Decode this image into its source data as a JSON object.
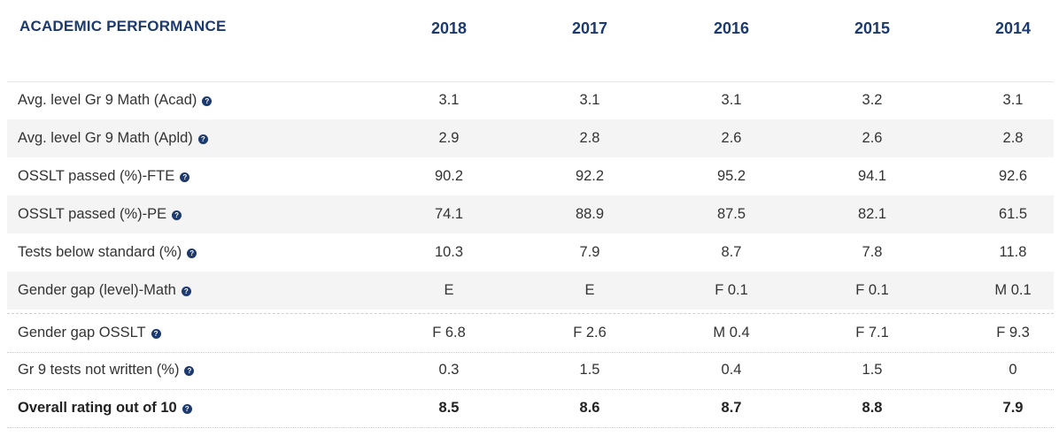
{
  "header": {
    "title": "ACADEMIC PERFORMANCE",
    "years": [
      "2018",
      "2017",
      "2016",
      "2015",
      "2014"
    ]
  },
  "rows": [
    {
      "label": "Avg. level Gr 9 Math (Acad)",
      "values": [
        "3.1",
        "3.1",
        "3.1",
        "3.2",
        "3.1"
      ]
    },
    {
      "label": "Avg. level Gr 9 Math (Apld)",
      "values": [
        "2.9",
        "2.8",
        "2.6",
        "2.6",
        "2.8"
      ]
    },
    {
      "label": "OSSLT passed (%)-FTE",
      "values": [
        "90.2",
        "92.2",
        "95.2",
        "94.1",
        "92.6"
      ]
    },
    {
      "label": "OSSLT passed (%)-PE",
      "values": [
        "74.1",
        "88.9",
        "87.5",
        "82.1",
        "61.5"
      ]
    },
    {
      "label": "Tests below standard (%)",
      "values": [
        "10.3",
        "7.9",
        "8.7",
        "7.8",
        "11.8"
      ]
    },
    {
      "label": "Gender gap (level)-Math",
      "values": [
        "E",
        "E",
        "F 0.1",
        "F 0.1",
        "M 0.1"
      ]
    },
    {
      "label": "Gender gap OSSLT",
      "values": [
        "F 6.8",
        "F 2.6",
        "M 0.4",
        "F 7.1",
        "F 9.3"
      ]
    },
    {
      "label": "Gr 9 tests not written (%)",
      "values": [
        "0.3",
        "1.5",
        "0.4",
        "1.5",
        "0"
      ]
    },
    {
      "label": "Overall rating out of 10",
      "values": [
        "8.5",
        "8.6",
        "8.7",
        "8.8",
        "7.9"
      ]
    }
  ],
  "icons": {
    "info": "info-circle-icon"
  },
  "colors": {
    "heading": "#1d3a6e",
    "shade": "#f4f4f4",
    "text": "#333333"
  }
}
